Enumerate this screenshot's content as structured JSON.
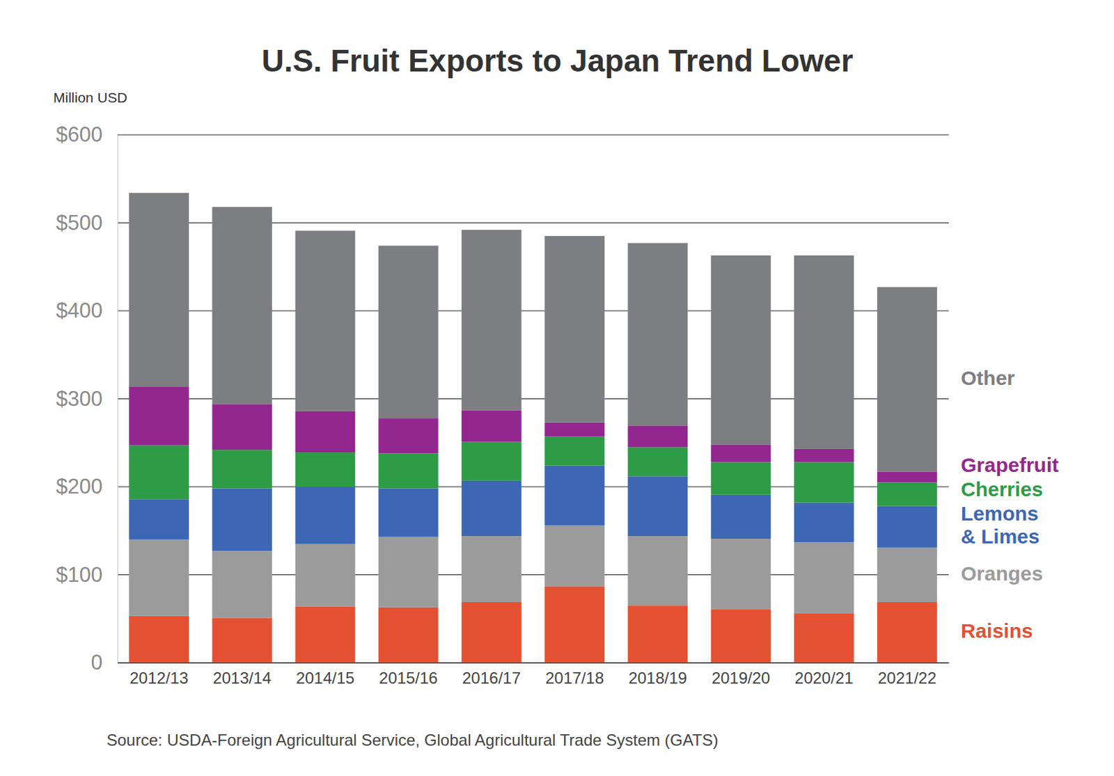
{
  "chart_data": {
    "type": "bar",
    "stacked": true,
    "title": "U.S. Fruit Exports to Japan Trend Lower",
    "y_label": "Million USD",
    "source": "Source: USDA-Foreign Agricultural Service, Global Agricultural Trade System (GATS)",
    "categories": [
      "2012/13",
      "2013/14",
      "2014/15",
      "2015/16",
      "2016/17",
      "2017/18",
      "2018/19",
      "2019/20",
      "2020/21",
      "2021/22"
    ],
    "series": [
      {
        "name": "Raisins",
        "color": "#e45132",
        "values": [
          53,
          51,
          64,
          63,
          69,
          87,
          65,
          61,
          56,
          69
        ]
      },
      {
        "name": "Oranges",
        "color": "#9b9b9b",
        "values": [
          87,
          76,
          71,
          80,
          75,
          69,
          79,
          80,
          81,
          62
        ]
      },
      {
        "name": "Lemons & Limes",
        "color": "#3d67b4",
        "values": [
          46,
          71,
          65,
          55,
          63,
          68,
          68,
          50,
          45,
          47
        ]
      },
      {
        "name": "Cherries",
        "color": "#2e9b47",
        "values": [
          61,
          44,
          39,
          40,
          44,
          33,
          33,
          37,
          46,
          27
        ]
      },
      {
        "name": "Grapefruit",
        "color": "#93278f",
        "values": [
          67,
          52,
          47,
          40,
          36,
          16,
          24,
          20,
          15,
          12
        ]
      },
      {
        "name": "Other",
        "color": "#7d7e82",
        "values": [
          220,
          224,
          205,
          196,
          205,
          212,
          208,
          215,
          220,
          210
        ]
      }
    ],
    "ylim": [
      0,
      600
    ],
    "yticks": [
      0,
      {
        "value": 100,
        "label": "$100"
      },
      {
        "value": 200,
        "label": "$200"
      },
      {
        "value": 300,
        "label": "$300"
      },
      {
        "value": 400,
        "label": "$400"
      },
      {
        "value": 500,
        "label": "$500"
      },
      {
        "value": 600,
        "label": "$600"
      }
    ],
    "grid": true,
    "legend": "right"
  }
}
